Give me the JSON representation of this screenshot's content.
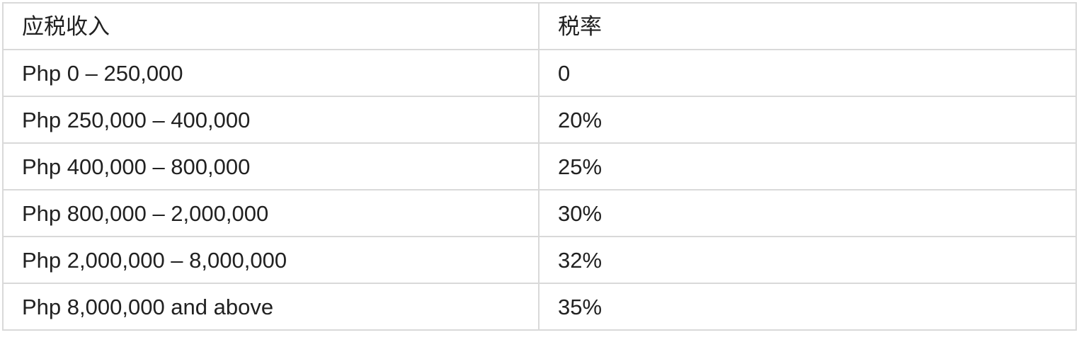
{
  "colors": {
    "background": "#ffffff",
    "border": "#d9d9d9",
    "text": "#212121"
  },
  "table": {
    "columns": [
      {
        "label": "应税收入"
      },
      {
        "label": "税率"
      }
    ],
    "rows": [
      {
        "income": "Php 0 – 250,000",
        "rate": "0"
      },
      {
        "income": "Php 250,000 – 400,000",
        "rate": "20%"
      },
      {
        "income": "Php 400,000 – 800,000",
        "rate": "25%"
      },
      {
        "income": "Php 800,000 – 2,000,000",
        "rate": "30%"
      },
      {
        "income": "Php 2,000,000 – 8,000,000",
        "rate": "32%"
      },
      {
        "income": "Php 8,000,000 and above",
        "rate": "35%"
      }
    ]
  }
}
